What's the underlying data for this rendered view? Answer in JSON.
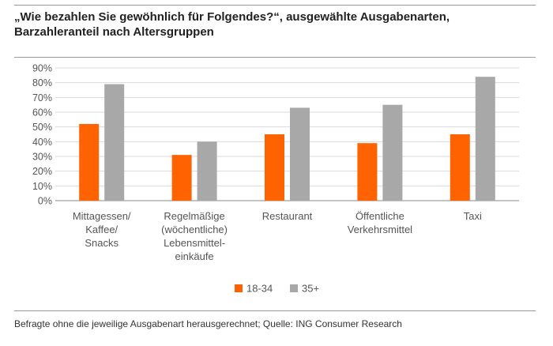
{
  "title": "„Wie bezahlen Sie gewöhnlich für Folgendes?“, ausgewählte Ausgabenarten, Barzahleranteil nach Altersgruppen",
  "footnote": "Befragte ohne die jeweilige Ausgabenart herausgerechnet; Quelle: ING Consumer Research",
  "colors": {
    "series_18_34": "#FF6200",
    "series_35_plus": "#A8A8A8",
    "grid": "#DADADA",
    "axis": "#888888"
  },
  "chart_data": {
    "type": "bar",
    "title": "„Wie bezahlen Sie gewöhnlich für Folgendes?“, ausgewählte Ausgabenarten, Barzahleranteil nach Altersgruppen",
    "xlabel": "",
    "ylabel": "",
    "ylim": [
      0,
      90
    ],
    "yticks": [
      "0%",
      "10%",
      "20%",
      "30%",
      "40%",
      "50%",
      "60%",
      "70%",
      "80%",
      "90%"
    ],
    "grid": true,
    "legend_position": "bottom",
    "categories": [
      [
        "Mittagessen/",
        "Kaffee/",
        "Snacks"
      ],
      [
        "Regelmäßige",
        "(wöchentliche)",
        "Lebensmittel-",
        "einkäufe"
      ],
      [
        "Restaurant"
      ],
      [
        "Öffentliche",
        "Verkehrsmittel"
      ],
      [
        "Taxi"
      ]
    ],
    "series": [
      {
        "name": "18-34",
        "values": [
          52,
          31,
          45,
          39,
          45
        ]
      },
      {
        "name": "35+",
        "values": [
          79,
          40,
          63,
          65,
          84
        ]
      }
    ]
  }
}
